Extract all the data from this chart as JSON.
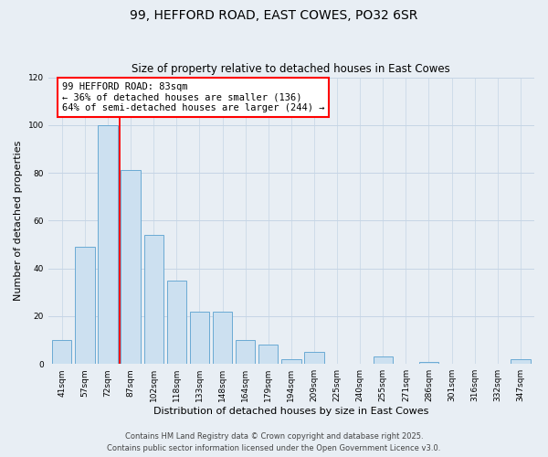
{
  "title": "99, HEFFORD ROAD, EAST COWES, PO32 6SR",
  "subtitle": "Size of property relative to detached houses in East Cowes",
  "xlabel": "Distribution of detached houses by size in East Cowes",
  "ylabel": "Number of detached properties",
  "categories": [
    "41sqm",
    "57sqm",
    "72sqm",
    "87sqm",
    "102sqm",
    "118sqm",
    "133sqm",
    "148sqm",
    "164sqm",
    "179sqm",
    "194sqm",
    "209sqm",
    "225sqm",
    "240sqm",
    "255sqm",
    "271sqm",
    "286sqm",
    "301sqm",
    "316sqm",
    "332sqm",
    "347sqm"
  ],
  "values": [
    10,
    49,
    100,
    81,
    54,
    35,
    22,
    22,
    10,
    8,
    2,
    5,
    0,
    0,
    3,
    0,
    1,
    0,
    0,
    0,
    2
  ],
  "bar_color": "#cce0f0",
  "bar_edge_color": "#6aaad4",
  "ylim": [
    0,
    120
  ],
  "yticks": [
    0,
    20,
    40,
    60,
    80,
    100,
    120
  ],
  "vline_x": 2.5,
  "vline_color": "red",
  "annotation_text": "99 HEFFORD ROAD: 83sqm\n← 36% of detached houses are smaller (136)\n64% of semi-detached houses are larger (244) →",
  "footer_line1": "Contains HM Land Registry data © Crown copyright and database right 2025.",
  "footer_line2": "Contains public sector information licensed under the Open Government Licence v3.0.",
  "bg_color": "#e8eef4",
  "grid_color": "#c5d5e5",
  "title_fontsize": 10,
  "subtitle_fontsize": 8.5,
  "axis_label_fontsize": 8,
  "tick_fontsize": 6.5,
  "annotation_fontsize": 7.5,
  "footer_fontsize": 6
}
